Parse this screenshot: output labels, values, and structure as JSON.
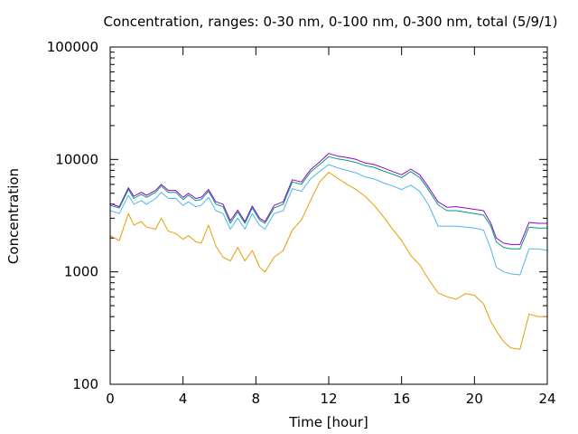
{
  "chart_data": {
    "type": "line",
    "title": "Concentration, ranges: 0-30 nm, 0-100 nm, 0-300 nm, total (5/9/1)",
    "xlabel": "Time [hour]",
    "ylabel": "Concentration",
    "xlim": [
      0,
      24
    ],
    "ylim": [
      100,
      100000
    ],
    "yscale": "log",
    "grid": false,
    "x_ticks": [
      0,
      4,
      8,
      12,
      16,
      20,
      24
    ],
    "x_tick_labels": [
      "0",
      "4",
      "8",
      "12",
      "16",
      "20",
      "24"
    ],
    "y_ticks": [
      100,
      1000,
      10000,
      100000
    ],
    "y_tick_labels": [
      "100",
      "1000",
      "10000",
      "100000"
    ],
    "x": [
      0,
      0.5,
      1.0,
      1.3,
      1.7,
      2.0,
      2.5,
      2.8,
      3.2,
      3.6,
      4.0,
      4.3,
      4.7,
      5.0,
      5.4,
      5.8,
      6.2,
      6.6,
      7.0,
      7.4,
      7.8,
      8.2,
      8.5,
      9.0,
      9.5,
      10.0,
      10.5,
      11.0,
      11.5,
      12.0,
      12.5,
      13.0,
      13.5,
      14.0,
      14.5,
      15.0,
      15.5,
      16.0,
      16.5,
      17.0,
      17.5,
      18.0,
      18.5,
      19.0,
      19.5,
      20.0,
      20.5,
      20.9,
      21.2,
      21.6,
      22.0,
      22.5,
      23.0,
      23.5,
      24.0
    ],
    "series": [
      {
        "color": "#9400d3",
        "values": [
          4050,
          3800,
          5600,
          4700,
          5100,
          4800,
          5300,
          6000,
          5300,
          5300,
          4600,
          5000,
          4500,
          4600,
          5400,
          4200,
          4000,
          2850,
          3550,
          2800,
          3850,
          3000,
          2800,
          3900,
          4200,
          6600,
          6300,
          8100,
          9500,
          11300,
          10700,
          10400,
          10000,
          9300,
          9000,
          8400,
          7800,
          7300,
          8200,
          7300,
          5600,
          4200,
          3750,
          3800,
          3700,
          3600,
          3500,
          2700,
          2000,
          1800,
          1750,
          1750,
          2750,
          2700,
          2700
        ]
      },
      {
        "color": "#009e73",
        "values": [
          3900,
          3700,
          5400,
          4500,
          4900,
          4600,
          5100,
          5800,
          5100,
          5100,
          4400,
          4800,
          4300,
          4400,
          5200,
          4000,
          3800,
          2700,
          3400,
          2700,
          3700,
          2900,
          2700,
          3700,
          4000,
          6300,
          6000,
          7700,
          9000,
          10600,
          10100,
          9800,
          9400,
          8800,
          8500,
          7900,
          7400,
          6900,
          7800,
          6900,
          5300,
          3950,
          3500,
          3500,
          3400,
          3300,
          3200,
          2550,
          1850,
          1650,
          1600,
          1600,
          2500,
          2450,
          2450
        ]
      },
      {
        "color": "#56b4e9",
        "values": [
          3500,
          3300,
          4800,
          4000,
          4300,
          4000,
          4500,
          5100,
          4500,
          4500,
          3900,
          4200,
          3800,
          3900,
          4600,
          3500,
          3300,
          2400,
          3000,
          2400,
          3300,
          2600,
          2400,
          3300,
          3500,
          5500,
          5200,
          6700,
          7800,
          9000,
          8400,
          8000,
          7600,
          7000,
          6700,
          6200,
          5800,
          5400,
          5900,
          5200,
          3900,
          2550,
          2550,
          2550,
          2500,
          2450,
          2350,
          1600,
          1100,
          1000,
          960,
          940,
          1600,
          1600,
          1550
        ]
      },
      {
        "color": "#e69f00",
        "values": [
          2100,
          1900,
          3300,
          2600,
          2800,
          2500,
          2400,
          3000,
          2300,
          2200,
          1950,
          2100,
          1850,
          1800,
          2600,
          1700,
          1350,
          1250,
          1650,
          1250,
          1550,
          1100,
          1000,
          1350,
          1550,
          2350,
          2900,
          4300,
          6300,
          7700,
          6800,
          6000,
          5400,
          4700,
          3900,
          3100,
          2400,
          1900,
          1400,
          1150,
          850,
          650,
          600,
          570,
          640,
          620,
          520,
          360,
          300,
          240,
          210,
          205,
          420,
          400,
          400
        ]
      }
    ]
  }
}
